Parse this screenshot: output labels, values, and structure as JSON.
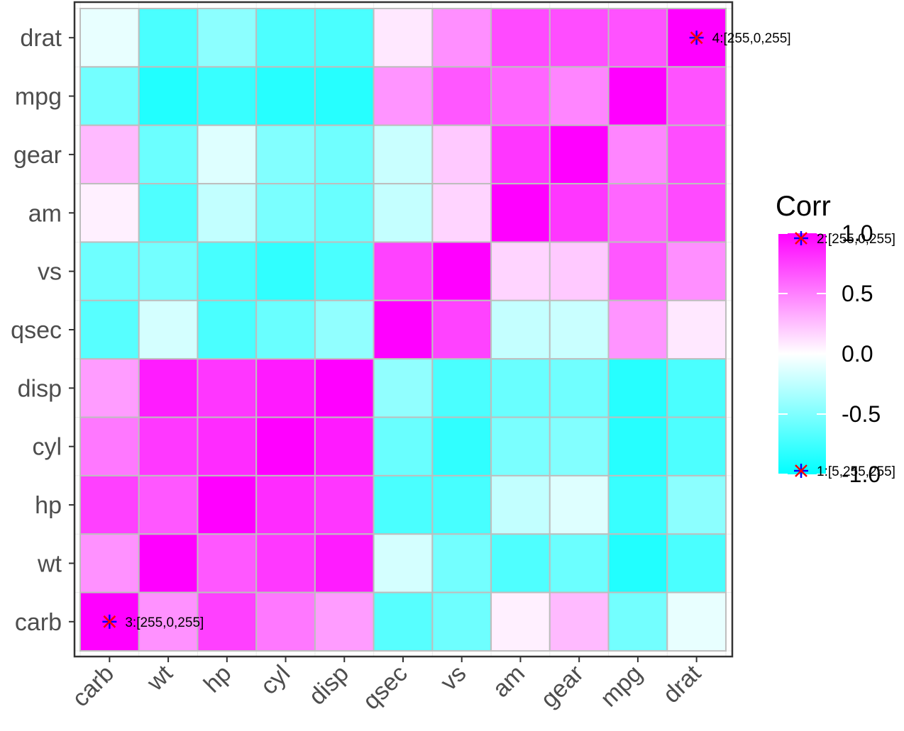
{
  "chart_data": {
    "type": "heatmap",
    "title": "",
    "xlabel": "",
    "ylabel": "",
    "x_categories": [
      "carb",
      "wt",
      "hp",
      "cyl",
      "disp",
      "qsec",
      "vs",
      "am",
      "gear",
      "mpg",
      "drat"
    ],
    "y_categories_top_to_bottom": [
      "drat",
      "mpg",
      "gear",
      "am",
      "vs",
      "qsec",
      "disp",
      "cyl",
      "hp",
      "wt",
      "carb"
    ],
    "values": [
      [
        -0.09,
        -0.71,
        -0.45,
        -0.7,
        -0.71,
        0.09,
        0.44,
        0.71,
        0.7,
        0.68,
        1.0
      ],
      [
        -0.55,
        -0.87,
        -0.78,
        -0.85,
        -0.85,
        0.42,
        0.66,
        0.6,
        0.48,
        1.0,
        0.68
      ],
      [
        0.27,
        -0.58,
        -0.13,
        -0.49,
        -0.56,
        -0.21,
        0.21,
        0.79,
        1.0,
        0.48,
        0.7
      ],
      [
        0.06,
        -0.69,
        -0.24,
        -0.52,
        -0.59,
        -0.23,
        0.17,
        1.0,
        0.79,
        0.6,
        0.71
      ],
      [
        -0.57,
        -0.55,
        -0.72,
        -0.81,
        -0.71,
        0.74,
        1.0,
        0.17,
        0.21,
        0.66,
        0.44
      ],
      [
        -0.66,
        -0.17,
        -0.71,
        -0.59,
        -0.43,
        1.0,
        0.74,
        -0.23,
        -0.21,
        0.42,
        0.09
      ],
      [
        0.39,
        0.89,
        0.79,
        0.9,
        1.0,
        -0.43,
        -0.71,
        -0.59,
        -0.56,
        -0.85,
        -0.71
      ],
      [
        0.53,
        0.78,
        0.83,
        1.0,
        0.9,
        -0.59,
        -0.81,
        -0.52,
        -0.49,
        -0.85,
        -0.7
      ],
      [
        0.75,
        0.66,
        1.0,
        0.83,
        0.79,
        -0.71,
        -0.72,
        -0.24,
        -0.13,
        -0.78,
        -0.45
      ],
      [
        0.43,
        1.0,
        0.66,
        0.78,
        0.89,
        -0.17,
        -0.55,
        -0.69,
        -0.58,
        -0.87,
        -0.71
      ],
      [
        1.0,
        0.43,
        0.75,
        0.53,
        0.39,
        -0.66,
        -0.57,
        0.06,
        0.27,
        -0.55,
        -0.09
      ]
    ],
    "color_scale": {
      "low": "#00ffff",
      "mid": "#ffffff",
      "high": "#ff00ff",
      "limits": [
        -1,
        1
      ]
    },
    "tile_border_color": "#bebebe",
    "legend": {
      "title": "Corr",
      "placement": "right",
      "ticks": [
        1.0,
        0.5,
        0.0,
        -0.5,
        -1.0
      ],
      "tick_labels": [
        "1.0",
        "0.5",
        "0.0",
        "-0.5",
        "-1.0"
      ]
    },
    "annotations": [
      {
        "label": "4:[255,0,255]",
        "x": "drat",
        "y": "drat"
      },
      {
        "label": "3:[255,0,255]",
        "x": "carb",
        "y": "carb"
      },
      {
        "label": "2:[255,0,255]",
        "legend_value": 1.0
      },
      {
        "label": "1:[5,255,255]",
        "legend_value": -1.0
      }
    ],
    "marker_colors": {
      "cross": "#ff0000",
      "plus": "#0000ff"
    },
    "grid": true
  }
}
